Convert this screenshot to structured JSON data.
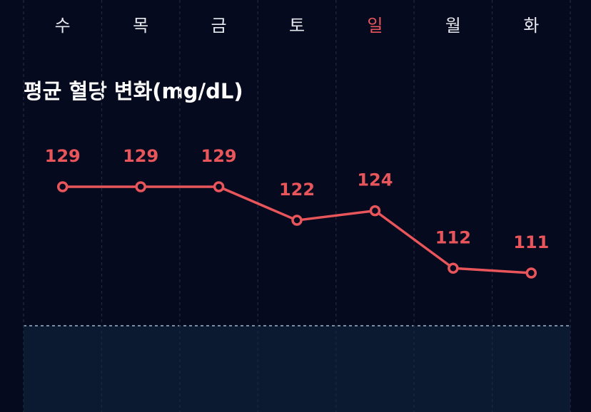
{
  "chart_data": {
    "type": "line",
    "title": "평균 혈당 변화(mg/dL)",
    "categories": [
      "수",
      "목",
      "금",
      "토",
      "일",
      "월",
      "화"
    ],
    "category_colors": [
      "#e6e8ee",
      "#e6e8ee",
      "#e6e8ee",
      "#e6e8ee",
      "#e8555a",
      "#e6e8ee",
      "#e6e8ee"
    ],
    "values": [
      129,
      129,
      129,
      122,
      124,
      112,
      111
    ],
    "color": "#e8555a"
  }
}
